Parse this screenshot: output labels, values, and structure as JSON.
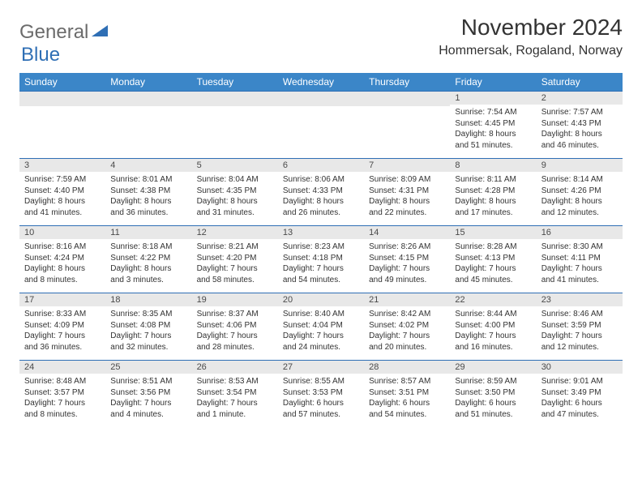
{
  "logo": {
    "general": "General",
    "blue": "Blue"
  },
  "title": "November 2024",
  "location": "Hommersak, Rogaland, Norway",
  "colors": {
    "header_bg": "#3b86c8",
    "border": "#2f6fb5",
    "daynum_bg": "#e8e8e8",
    "text": "#333333",
    "logo_gray": "#6b6b6b",
    "logo_blue": "#2f6fb5"
  },
  "day_headers": [
    "Sunday",
    "Monday",
    "Tuesday",
    "Wednesday",
    "Thursday",
    "Friday",
    "Saturday"
  ],
  "weeks": [
    [
      {
        "n": "",
        "sr": "",
        "ss": "",
        "dl": ""
      },
      {
        "n": "",
        "sr": "",
        "ss": "",
        "dl": ""
      },
      {
        "n": "",
        "sr": "",
        "ss": "",
        "dl": ""
      },
      {
        "n": "",
        "sr": "",
        "ss": "",
        "dl": ""
      },
      {
        "n": "",
        "sr": "",
        "ss": "",
        "dl": ""
      },
      {
        "n": "1",
        "sr": "Sunrise: 7:54 AM",
        "ss": "Sunset: 4:45 PM",
        "dl": "Daylight: 8 hours and 51 minutes."
      },
      {
        "n": "2",
        "sr": "Sunrise: 7:57 AM",
        "ss": "Sunset: 4:43 PM",
        "dl": "Daylight: 8 hours and 46 minutes."
      }
    ],
    [
      {
        "n": "3",
        "sr": "Sunrise: 7:59 AM",
        "ss": "Sunset: 4:40 PM",
        "dl": "Daylight: 8 hours and 41 minutes."
      },
      {
        "n": "4",
        "sr": "Sunrise: 8:01 AM",
        "ss": "Sunset: 4:38 PM",
        "dl": "Daylight: 8 hours and 36 minutes."
      },
      {
        "n": "5",
        "sr": "Sunrise: 8:04 AM",
        "ss": "Sunset: 4:35 PM",
        "dl": "Daylight: 8 hours and 31 minutes."
      },
      {
        "n": "6",
        "sr": "Sunrise: 8:06 AM",
        "ss": "Sunset: 4:33 PM",
        "dl": "Daylight: 8 hours and 26 minutes."
      },
      {
        "n": "7",
        "sr": "Sunrise: 8:09 AM",
        "ss": "Sunset: 4:31 PM",
        "dl": "Daylight: 8 hours and 22 minutes."
      },
      {
        "n": "8",
        "sr": "Sunrise: 8:11 AM",
        "ss": "Sunset: 4:28 PM",
        "dl": "Daylight: 8 hours and 17 minutes."
      },
      {
        "n": "9",
        "sr": "Sunrise: 8:14 AM",
        "ss": "Sunset: 4:26 PM",
        "dl": "Daylight: 8 hours and 12 minutes."
      }
    ],
    [
      {
        "n": "10",
        "sr": "Sunrise: 8:16 AM",
        "ss": "Sunset: 4:24 PM",
        "dl": "Daylight: 8 hours and 8 minutes."
      },
      {
        "n": "11",
        "sr": "Sunrise: 8:18 AM",
        "ss": "Sunset: 4:22 PM",
        "dl": "Daylight: 8 hours and 3 minutes."
      },
      {
        "n": "12",
        "sr": "Sunrise: 8:21 AM",
        "ss": "Sunset: 4:20 PM",
        "dl": "Daylight: 7 hours and 58 minutes."
      },
      {
        "n": "13",
        "sr": "Sunrise: 8:23 AM",
        "ss": "Sunset: 4:18 PM",
        "dl": "Daylight: 7 hours and 54 minutes."
      },
      {
        "n": "14",
        "sr": "Sunrise: 8:26 AM",
        "ss": "Sunset: 4:15 PM",
        "dl": "Daylight: 7 hours and 49 minutes."
      },
      {
        "n": "15",
        "sr": "Sunrise: 8:28 AM",
        "ss": "Sunset: 4:13 PM",
        "dl": "Daylight: 7 hours and 45 minutes."
      },
      {
        "n": "16",
        "sr": "Sunrise: 8:30 AM",
        "ss": "Sunset: 4:11 PM",
        "dl": "Daylight: 7 hours and 41 minutes."
      }
    ],
    [
      {
        "n": "17",
        "sr": "Sunrise: 8:33 AM",
        "ss": "Sunset: 4:09 PM",
        "dl": "Daylight: 7 hours and 36 minutes."
      },
      {
        "n": "18",
        "sr": "Sunrise: 8:35 AM",
        "ss": "Sunset: 4:08 PM",
        "dl": "Daylight: 7 hours and 32 minutes."
      },
      {
        "n": "19",
        "sr": "Sunrise: 8:37 AM",
        "ss": "Sunset: 4:06 PM",
        "dl": "Daylight: 7 hours and 28 minutes."
      },
      {
        "n": "20",
        "sr": "Sunrise: 8:40 AM",
        "ss": "Sunset: 4:04 PM",
        "dl": "Daylight: 7 hours and 24 minutes."
      },
      {
        "n": "21",
        "sr": "Sunrise: 8:42 AM",
        "ss": "Sunset: 4:02 PM",
        "dl": "Daylight: 7 hours and 20 minutes."
      },
      {
        "n": "22",
        "sr": "Sunrise: 8:44 AM",
        "ss": "Sunset: 4:00 PM",
        "dl": "Daylight: 7 hours and 16 minutes."
      },
      {
        "n": "23",
        "sr": "Sunrise: 8:46 AM",
        "ss": "Sunset: 3:59 PM",
        "dl": "Daylight: 7 hours and 12 minutes."
      }
    ],
    [
      {
        "n": "24",
        "sr": "Sunrise: 8:48 AM",
        "ss": "Sunset: 3:57 PM",
        "dl": "Daylight: 7 hours and 8 minutes."
      },
      {
        "n": "25",
        "sr": "Sunrise: 8:51 AM",
        "ss": "Sunset: 3:56 PM",
        "dl": "Daylight: 7 hours and 4 minutes."
      },
      {
        "n": "26",
        "sr": "Sunrise: 8:53 AM",
        "ss": "Sunset: 3:54 PM",
        "dl": "Daylight: 7 hours and 1 minute."
      },
      {
        "n": "27",
        "sr": "Sunrise: 8:55 AM",
        "ss": "Sunset: 3:53 PM",
        "dl": "Daylight: 6 hours and 57 minutes."
      },
      {
        "n": "28",
        "sr": "Sunrise: 8:57 AM",
        "ss": "Sunset: 3:51 PM",
        "dl": "Daylight: 6 hours and 54 minutes."
      },
      {
        "n": "29",
        "sr": "Sunrise: 8:59 AM",
        "ss": "Sunset: 3:50 PM",
        "dl": "Daylight: 6 hours and 51 minutes."
      },
      {
        "n": "30",
        "sr": "Sunrise: 9:01 AM",
        "ss": "Sunset: 3:49 PM",
        "dl": "Daylight: 6 hours and 47 minutes."
      }
    ]
  ]
}
